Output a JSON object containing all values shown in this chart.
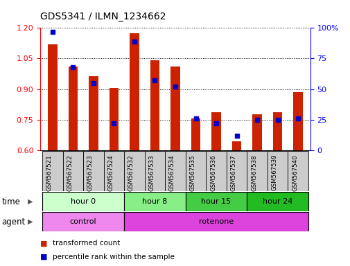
{
  "title": "GDS5341 / ILMN_1234662",
  "samples": [
    "GSM567521",
    "GSM567522",
    "GSM567523",
    "GSM567524",
    "GSM567532",
    "GSM567533",
    "GSM567534",
    "GSM567535",
    "GSM567536",
    "GSM567537",
    "GSM567538",
    "GSM567539",
    "GSM567540"
  ],
  "transformed_count": [
    1.12,
    1.01,
    0.965,
    0.905,
    1.175,
    1.04,
    1.01,
    0.755,
    0.785,
    0.645,
    0.775,
    0.785,
    0.885
  ],
  "percentile_rank": [
    97,
    68,
    55,
    22,
    89,
    57,
    52,
    26,
    22,
    12,
    25,
    25,
    26
  ],
  "ylim_left": [
    0.6,
    1.2
  ],
  "ylim_right": [
    0,
    100
  ],
  "yticks_left": [
    0.6,
    0.75,
    0.9,
    1.05,
    1.2
  ],
  "yticks_right": [
    0,
    25,
    50,
    75,
    100
  ],
  "ytick_labels_right": [
    "0",
    "25",
    "50",
    "75",
    "100%"
  ],
  "bar_color": "#cc2200",
  "dot_color": "#0000cc",
  "time_groups": [
    {
      "label": "hour 0",
      "start": 0,
      "end": 4,
      "color": "#ccffcc"
    },
    {
      "label": "hour 8",
      "start": 4,
      "end": 7,
      "color": "#88ee88"
    },
    {
      "label": "hour 15",
      "start": 7,
      "end": 10,
      "color": "#44cc44"
    },
    {
      "label": "hour 24",
      "start": 10,
      "end": 13,
      "color": "#22bb22"
    }
  ],
  "agent_groups": [
    {
      "label": "control",
      "start": 0,
      "end": 4,
      "color": "#ee88ee"
    },
    {
      "label": "rotenone",
      "start": 4,
      "end": 13,
      "color": "#dd44dd"
    }
  ],
  "time_label": "time",
  "agent_label": "agent",
  "legend1": "transformed count",
  "legend2": "percentile rank within the sample",
  "tick_label_bg": "#cccccc",
  "bar_width": 0.45
}
